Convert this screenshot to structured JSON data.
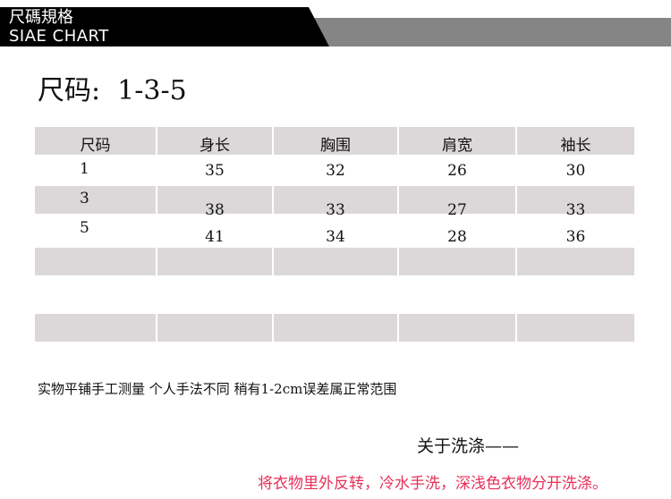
{
  "banner": {
    "title_cn": "尺碼規格",
    "title_en": "SIAE CHART"
  },
  "title": "尺码:  1-3-5",
  "table": {
    "headers": [
      "尺码",
      "身长",
      "胸围",
      "肩宽",
      "袖长"
    ],
    "rows": [
      [
        "1",
        "35",
        "32",
        "26",
        "30"
      ],
      [
        "3",
        "38",
        "33",
        "27",
        "33"
      ],
      [
        "5",
        "41",
        "34",
        "28",
        "36"
      ],
      [
        "",
        "",
        "",
        "",
        ""
      ],
      [
        "",
        "",
        "",
        "",
        ""
      ],
      [
        "",
        "",
        "",
        "",
        ""
      ]
    ]
  },
  "note": "实物平铺手工测量 个人手法不同 稍有1-2cm误差属正常范围",
  "wash_heading": "关于洗涤——",
  "wash_tip": "将衣物里外反转，冷水手洗，深浅色衣物分开洗涤。",
  "colors": {
    "accent_red": "#e8305a",
    "table_gray": "#dcd8d9",
    "banner_gray": "#858585"
  }
}
